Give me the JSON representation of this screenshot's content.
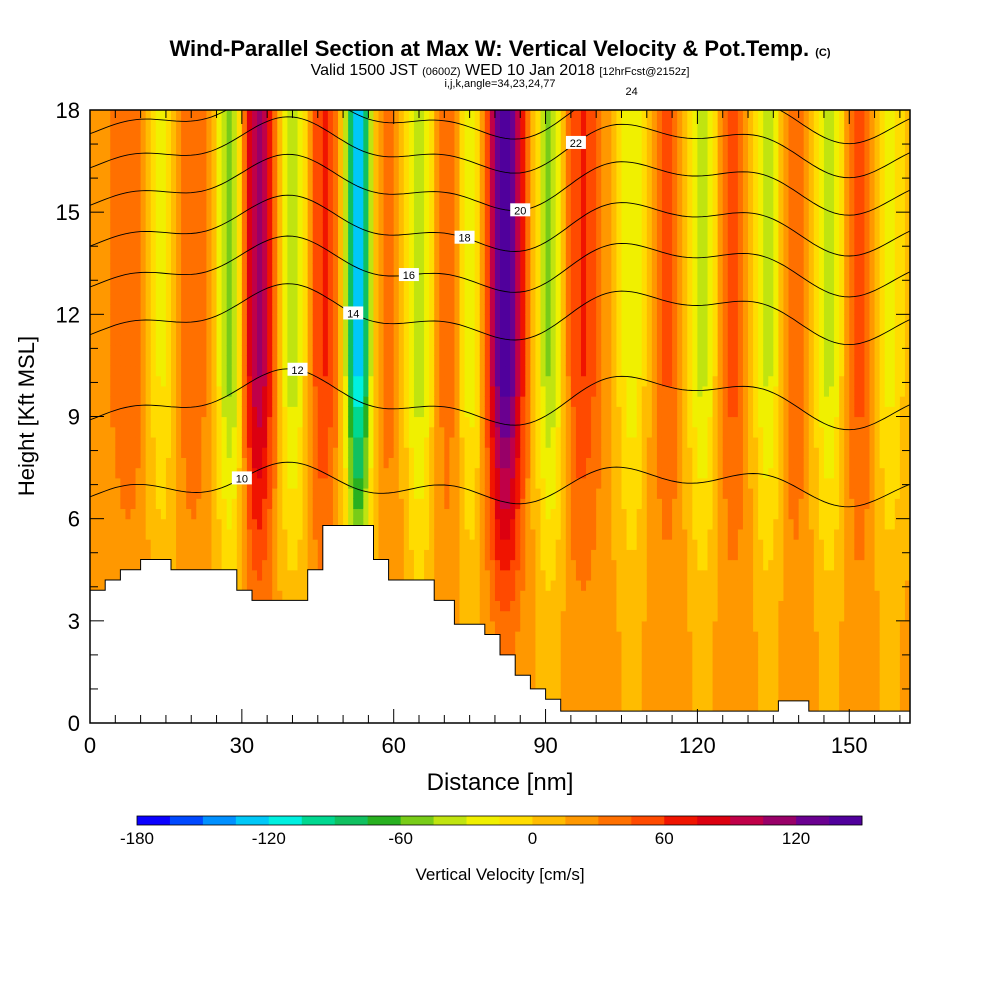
{
  "title": {
    "main": "Wind-Parallel Section at Max W: Vertical Velocity & Pot.Temp.",
    "copyright": "(C)",
    "valid_a": "Valid 1500 JST",
    "valid_utc": "(0600Z)",
    "valid_b": "WED 10 Jan 2018",
    "fcst": "[12hrFcst@2152z]",
    "subtitle2": "i,j,k,angle=34,23,24,77"
  },
  "chart_data": {
    "type": "heatmap",
    "xlabel": "Distance [nm]",
    "ylabel": "Height [Kft MSL]",
    "xlim": [
      0,
      162
    ],
    "ylim": [
      0,
      18
    ],
    "x_ticks": [
      "0",
      "30",
      "60",
      "90",
      "120",
      "150"
    ],
    "x_tick_values": [
      0,
      30,
      60,
      90,
      120,
      150
    ],
    "y_ticks": [
      "0",
      "3",
      "6",
      "9",
      "12",
      "15",
      "18"
    ],
    "y_tick_values": [
      0,
      3,
      6,
      9,
      12,
      15,
      18
    ],
    "colorbar": {
      "label": "Vertical Velocity [cm/s]",
      "tick_labels": [
        "-180",
        "-120",
        "-60",
        "0",
        "60",
        "120"
      ],
      "tick_values": [
        -180,
        -120,
        -60,
        0,
        60,
        120
      ],
      "min": -180,
      "max": 150,
      "step": 15,
      "colors": [
        "#0a00ff",
        "#0048ff",
        "#0090ff",
        "#00c8f8",
        "#00f0e0",
        "#00d890",
        "#10c060",
        "#28b020",
        "#78cc18",
        "#c0e410",
        "#f0f000",
        "#ffdc00",
        "#ffbc00",
        "#ff9800",
        "#ff7000",
        "#ff4a00",
        "#f01400",
        "#dc0010",
        "#c00048",
        "#980068",
        "#6a0090",
        "#50009c"
      ]
    },
    "velocity_columns": [
      {
        "x": 8,
        "value": 25,
        "width": 5
      },
      {
        "x": 14,
        "value": -45,
        "width": 3
      },
      {
        "x": 20,
        "value": 25,
        "width": 4
      },
      {
        "x": 28,
        "value": -80,
        "width": 3
      },
      {
        "x": 33,
        "value": 95,
        "width": 3.5
      },
      {
        "x": 40,
        "value": -60,
        "width": 3
      },
      {
        "x": 46,
        "value": 45,
        "width": 3
      },
      {
        "x": 53,
        "value": -150,
        "width": 2.5
      },
      {
        "x": 59,
        "value": 20,
        "width": 3
      },
      {
        "x": 65,
        "value": -60,
        "width": 3
      },
      {
        "x": 71,
        "value": 30,
        "width": 3
      },
      {
        "x": 75,
        "value": -50,
        "width": 3
      },
      {
        "x": 82,
        "value": 135,
        "width": 3.5
      },
      {
        "x": 91,
        "value": -70,
        "width": 3
      },
      {
        "x": 97,
        "value": 45,
        "width": 4
      },
      {
        "x": 107,
        "value": -45,
        "width": 3
      },
      {
        "x": 114,
        "value": 30,
        "width": 3
      },
      {
        "x": 121,
        "value": -55,
        "width": 3
      },
      {
        "x": 127,
        "value": 35,
        "width": 3
      },
      {
        "x": 134,
        "value": -55,
        "width": 3
      },
      {
        "x": 139,
        "value": 30,
        "width": 3
      },
      {
        "x": 146,
        "value": -55,
        "width": 3
      },
      {
        "x": 152,
        "value": 35,
        "width": 3
      },
      {
        "x": 158,
        "value": -40,
        "width": 3
      }
    ],
    "terrain": [
      [
        0,
        3.9
      ],
      [
        3,
        3.9
      ],
      [
        3,
        4.2
      ],
      [
        6,
        4.2
      ],
      [
        6,
        4.5
      ],
      [
        10,
        4.5
      ],
      [
        10,
        4.8
      ],
      [
        16,
        4.8
      ],
      [
        16,
        4.5
      ],
      [
        29,
        4.5
      ],
      [
        29,
        3.9
      ],
      [
        32,
        3.9
      ],
      [
        32,
        3.6
      ],
      [
        43,
        3.6
      ],
      [
        43,
        4.5
      ],
      [
        46,
        4.5
      ],
      [
        46,
        5.8
      ],
      [
        56,
        5.8
      ],
      [
        56,
        4.8
      ],
      [
        59,
        4.8
      ],
      [
        59,
        4.2
      ],
      [
        68,
        4.2
      ],
      [
        68,
        3.6
      ],
      [
        72,
        3.6
      ],
      [
        72,
        2.9
      ],
      [
        78,
        2.9
      ],
      [
        78,
        2.6
      ],
      [
        81,
        2.6
      ],
      [
        81,
        2.0
      ],
      [
        84,
        2.0
      ],
      [
        84,
        1.4
      ],
      [
        87,
        1.4
      ],
      [
        87,
        1.0
      ],
      [
        90,
        1.0
      ],
      [
        90,
        0.7
      ],
      [
        93,
        0.7
      ],
      [
        93,
        0.35
      ],
      [
        136,
        0.35
      ],
      [
        136,
        0.65
      ],
      [
        142,
        0.65
      ],
      [
        142,
        0.35
      ],
      [
        162,
        0.35
      ]
    ],
    "contours": [
      {
        "label": "10",
        "base": 7.0
      },
      {
        "label": "12",
        "base": 9.5
      },
      {
        "label": "14",
        "base": 12.0
      },
      {
        "label": "16",
        "base": 13.4
      },
      {
        "label": "18",
        "base": 14.6
      },
      {
        "label": "20",
        "base": 15.8
      },
      {
        "label": "22",
        "base": 16.9
      },
      {
        "label": "24",
        "base": 17.9
      }
    ]
  }
}
